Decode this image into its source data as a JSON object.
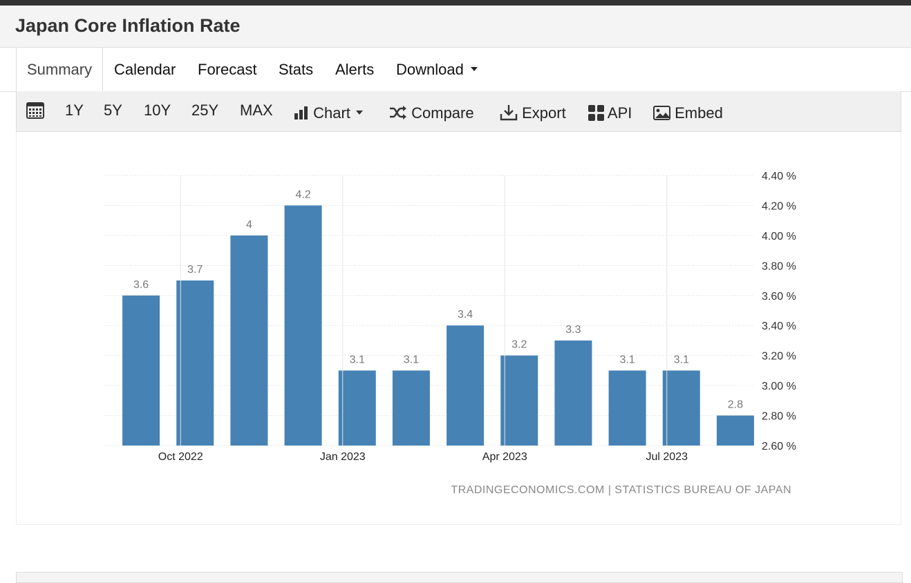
{
  "page": {
    "title": "Japan Core Inflation Rate"
  },
  "tabs": [
    {
      "label": "Summary",
      "active": true
    },
    {
      "label": "Calendar"
    },
    {
      "label": "Forecast"
    },
    {
      "label": "Stats"
    },
    {
      "label": "Alerts"
    },
    {
      "label": "Download",
      "has_dropdown": true
    }
  ],
  "toolbar": {
    "calendar_icon": "calendar-icon",
    "ranges": [
      "1Y",
      "5Y",
      "10Y",
      "25Y",
      "MAX"
    ],
    "chart_label": "Chart",
    "compare_label": "Compare",
    "export_label": "Export",
    "api_label": "API",
    "embed_label": "Embed"
  },
  "colors": {
    "bar": "#4682b4",
    "grid": "#e6e6e6",
    "label": "#777777",
    "source": "#888888"
  },
  "chart_data": {
    "type": "bar",
    "title": "",
    "xlabel": "",
    "ylabel": "",
    "categories": [
      "Sep 2022",
      "Oct 2022",
      "Nov 2022",
      "Dec 2022",
      "Jan 2023",
      "Feb 2023",
      "Mar 2023",
      "Apr 2023",
      "May 2023",
      "Jun 2023",
      "Jul 2023",
      "Aug 2023"
    ],
    "values": [
      3.6,
      3.7,
      4,
      4.2,
      3.1,
      3.1,
      3.4,
      3.2,
      3.3,
      3.1,
      3.1,
      2.8
    ],
    "value_labels": [
      "3.6",
      "3.7",
      "4",
      "4.2",
      "3.1",
      "3.1",
      "3.4",
      "3.2",
      "3.3",
      "3.1",
      "3.1",
      "2.8"
    ],
    "ylim": [
      2.6,
      4.4
    ],
    "yticks": [
      "4.40 %",
      "4.20 %",
      "4.00 %",
      "3.80 %",
      "3.60 %",
      "3.40 %",
      "3.20 %",
      "3.00 %",
      "2.80 %",
      "2.60 %"
    ],
    "ytick_values": [
      4.4,
      4.2,
      4.0,
      3.8,
      3.6,
      3.4,
      3.2,
      3.0,
      2.8,
      2.6
    ],
    "xticks": [
      "Oct 2022",
      "Jan 2023",
      "Apr 2023",
      "Jul 2023"
    ],
    "xtick_dates": [
      "2022-10-01",
      "2023-01-01",
      "2023-04-01",
      "2023-07-01"
    ],
    "grid": true,
    "yaxis_side": "right",
    "source": "TRADINGECONOMICS.COM | STATISTICS BUREAU OF JAPAN"
  }
}
